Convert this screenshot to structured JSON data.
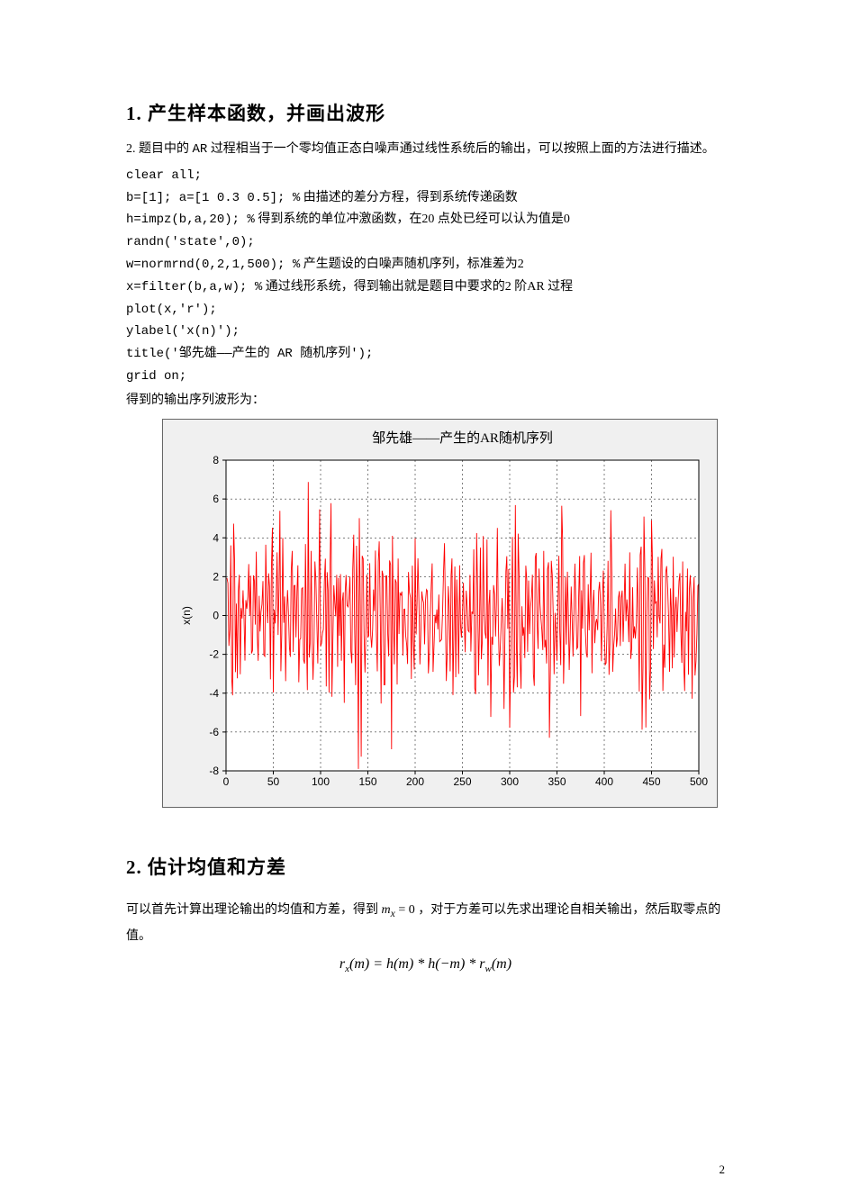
{
  "section1": {
    "heading": "1. 产生样本函数，并画出波形",
    "para1_prefix": "2. 题目中的 ",
    "para1_ar": "AR",
    "para1_suffix": " 过程相当于一个零均值正态白噪声通过线性系统后的输出，可以按照上面的方法进行描述。",
    "lines": [
      {
        "code": "clear all;"
      },
      {
        "code": "b=[1]; a=[1 0.3 0.5]; %",
        "comment": "  由描述的差分方程，得到系统传递函数"
      },
      {
        "code": "h=impz(b,a,20); %",
        "comment": " 得到系统的单位冲激函数，在20 点处已经可以认为值是0"
      },
      {
        "code": "randn('state',0);"
      },
      {
        "code": "w=normrnd(0,2,1,500); %",
        "comment": " 产生题设的白噪声随机序列，标准差为2"
      },
      {
        "code": "x=filter(b,a,w); %",
        "comment": " 通过线形系统，得到输出就是题目中要求的2 阶AR 过程"
      },
      {
        "code": "plot(x,'r');"
      },
      {
        "code": "ylabel('x(n)');"
      },
      {
        "code": "title('邹先雄――产生的 AR 随机序列');"
      },
      {
        "code": "grid on;"
      }
    ],
    "outpara": "得到的输出序列波形为："
  },
  "chart": {
    "type": "line",
    "title": "邹先雄——产生的AR随机序列",
    "title_fontsize": 15,
    "ylabel": "x(n)",
    "label_fontsize": 12,
    "line_color": "#ff0000",
    "background_color": "#ffffff",
    "frame_color": "#f0f0f0",
    "grid_color": "#000000",
    "grid_dash": "2,3",
    "axis_color": "#000000",
    "xlim": [
      0,
      500
    ],
    "ylim": [
      -8,
      8
    ],
    "xticks": [
      0,
      50,
      100,
      150,
      200,
      250,
      300,
      350,
      400,
      450,
      500
    ],
    "yticks": [
      -8,
      -6,
      -4,
      -2,
      0,
      2,
      4,
      6,
      8
    ],
    "n_points": 500,
    "ar_coeffs": [
      1,
      0.3,
      0.5
    ],
    "noise_std": 2,
    "seed": 0
  },
  "section2": {
    "heading": "2. 估计均值和方差",
    "para_a": "可以首先计算出理论输出的均值和方差，得到 ",
    "mx_expr": "m",
    "mx_sub": "x",
    "mx_eq": " = 0",
    "para_b": " ，对于方差可以先求出理论自相关输出，然后取零点的值。",
    "formula_html": "r<span class=\"sub\">x</span>(m) = h(m) * h(−m) * r<span class=\"sub\">w</span>(m)"
  },
  "pagenum": "2"
}
